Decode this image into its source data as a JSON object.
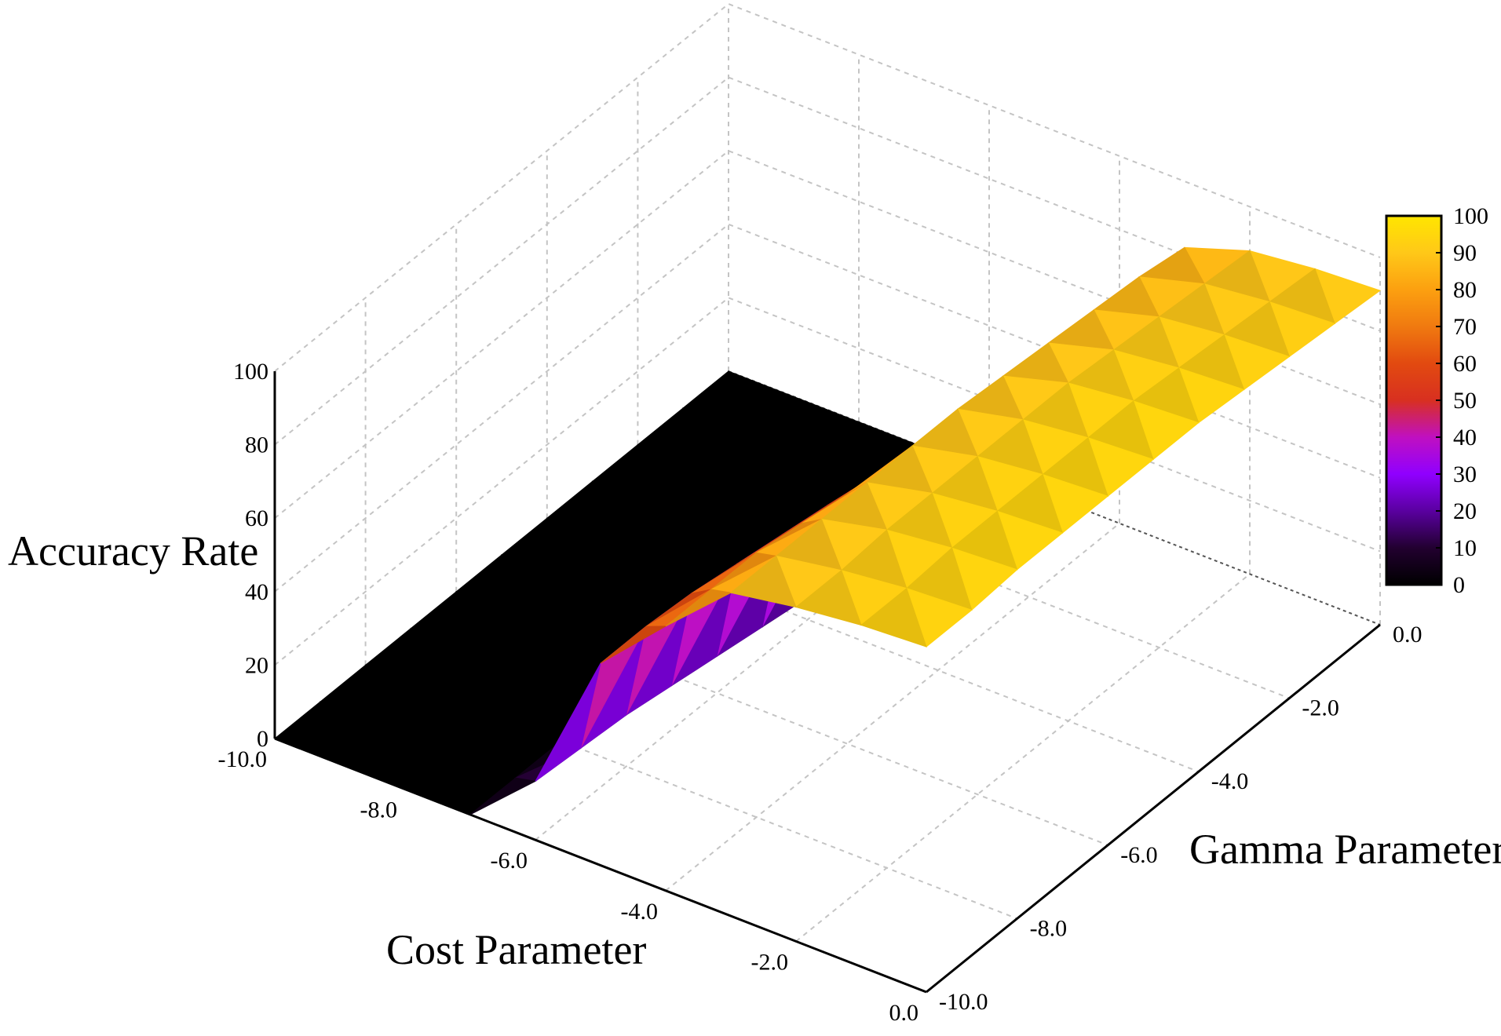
{
  "chart_data": {
    "type": "surface3d",
    "title": "",
    "zlabel": "Accuracy Rate",
    "xlabel": "Cost Parameter",
    "ylabel": "Gamma Parameter",
    "x_ticks": [
      "-10.0",
      "-8.0",
      "-6.0",
      "-4.0",
      "-2.0",
      "0.0"
    ],
    "y_ticks": [
      "0.0",
      "-2.0",
      "-4.0",
      "-6.0",
      "-8.0",
      "-10.0"
    ],
    "z_ticks": [
      "0",
      "20",
      "40",
      "60",
      "80",
      "100"
    ],
    "colorbar_ticks": [
      "100",
      "90",
      "80",
      "70",
      "60",
      "50",
      "40",
      "30",
      "20",
      "10",
      "0"
    ],
    "xlim": [
      -10,
      0
    ],
    "ylim": [
      -10,
      0
    ],
    "zlim": [
      0,
      100
    ],
    "colorscale": [
      "#000000",
      "#220030",
      "#5a00a0",
      "#9000ff",
      "#c010c0",
      "#d83020",
      "#e24a10",
      "#f07a10",
      "#fca010",
      "#ffc818",
      "#ffe600"
    ],
    "x": [
      -10,
      -9,
      -8,
      -7,
      -6,
      -5,
      -4,
      -3,
      -2,
      -1,
      0
    ],
    "y": [
      0,
      -1,
      -2,
      -3,
      -4,
      -5,
      -6,
      -7,
      -8,
      -9,
      -10
    ],
    "z": [
      [
        0,
        0,
        0,
        0,
        2,
        35,
        55,
        82,
        88,
        90,
        91
      ],
      [
        0,
        0,
        0,
        0,
        3,
        38,
        58,
        84,
        89,
        91,
        92
      ],
      [
        0,
        0,
        0,
        0,
        4,
        40,
        60,
        85,
        90,
        92,
        93
      ],
      [
        0,
        0,
        0,
        0,
        5,
        42,
        62,
        86,
        91,
        93,
        94
      ],
      [
        0,
        0,
        0,
        0,
        6,
        45,
        64,
        87,
        92,
        94,
        95
      ],
      [
        0,
        0,
        0,
        0,
        8,
        48,
        66,
        88,
        92,
        94,
        95
      ],
      [
        0,
        0,
        0,
        0,
        10,
        50,
        68,
        88,
        92,
        94,
        95
      ],
      [
        0,
        0,
        0,
        0,
        12,
        52,
        70,
        88,
        92,
        94,
        95
      ],
      [
        0,
        0,
        0,
        0,
        14,
        54,
        72,
        88,
        92,
        94,
        95
      ],
      [
        0,
        0,
        0,
        0,
        15,
        55,
        72,
        88,
        91,
        93,
        94
      ],
      [
        0,
        0,
        0,
        0,
        16,
        55,
        72,
        88,
        91,
        93,
        94
      ]
    ],
    "grid": true,
    "colorbar": "right"
  }
}
